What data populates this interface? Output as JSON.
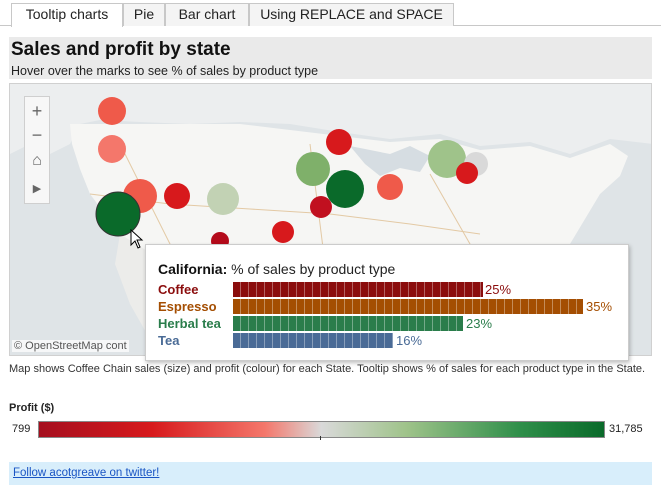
{
  "tabs": [
    {
      "label": "Tooltip charts",
      "active": true
    },
    {
      "label": "Pie",
      "active": false
    },
    {
      "label": "Bar chart",
      "active": false
    },
    {
      "label": "Using REPLACE and SPACE",
      "active": false
    }
  ],
  "header": {
    "title": "Sales and profit by state",
    "subtitle": "Hover over the marks to see % of sales by product type"
  },
  "map": {
    "controls": {
      "zoom_in": "+",
      "zoom_out": "−",
      "home": "⌂",
      "expand": "▶"
    },
    "credit": "© OpenStreetMap cont",
    "marker_colors": {
      "profit_low": "#a50f1e",
      "profit_mid": "#d9d9d9",
      "profit_high": "#0a6a2a"
    }
  },
  "tooltip": {
    "state": "California:",
    "title_suffix": " % of sales by product type",
    "rows": [
      {
        "label": "Coffee",
        "value": "25%",
        "color": "#8b0d0d",
        "pct": 25
      },
      {
        "label": "Espresso",
        "value": "35%",
        "color": "#a44e02",
        "pct": 35
      },
      {
        "label": "Herbal tea",
        "value": "23%",
        "color": "#2a7d4b",
        "pct": 23
      },
      {
        "label": "Tea",
        "value": "16%",
        "color": "#4a6b96",
        "pct": 16
      }
    ]
  },
  "caption": "Map shows Coffee Chain sales (size) and profit (colour) for each State. Tooltip shows % of sales for each product type in the State.",
  "legend": {
    "title": "Profit ($)",
    "min": "799",
    "max": "31,785"
  },
  "footer": {
    "link": "Follow acotgreave on twitter!"
  }
}
